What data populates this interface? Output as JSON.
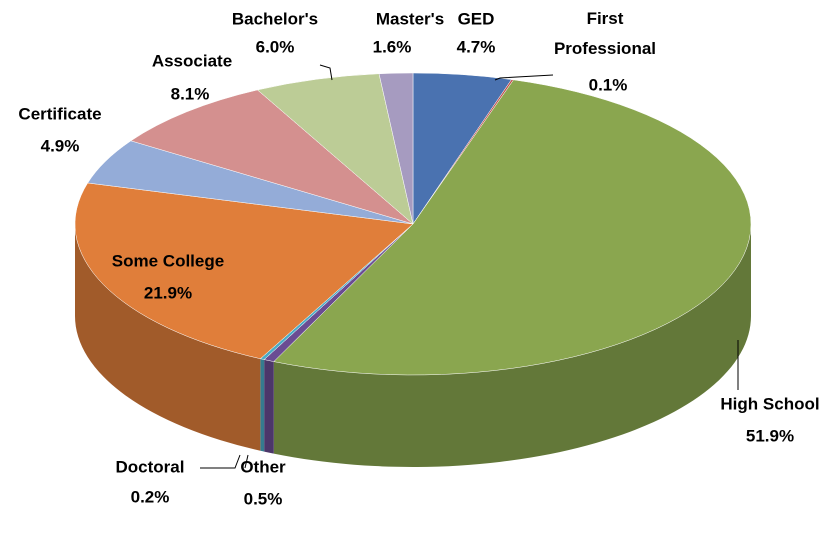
{
  "chart_data": {
    "type": "pie",
    "categories": [
      "GED",
      "First Professional",
      "High School",
      "Other",
      "Doctoral",
      "Some College",
      "Certificate",
      "Associate",
      "Bachelor's",
      "Master's"
    ],
    "values": [
      4.7,
      0.1,
      51.9,
      0.5,
      0.2,
      21.9,
      4.9,
      8.1,
      6.0,
      1.6
    ],
    "value_labels": [
      "4.7%",
      "0.1%",
      "51.9%",
      "0.5%",
      "0.2%",
      "21.9%",
      "4.9%",
      "8.1%",
      "6.0%",
      "1.6%"
    ],
    "colors": [
      "#4a72b0",
      "#c0504d",
      "#8aa64f",
      "#6a4c93",
      "#4aacc6",
      "#e07e3a",
      "#94acd8",
      "#d4908f",
      "#bccc96",
      "#a69bc0"
    ]
  }
}
